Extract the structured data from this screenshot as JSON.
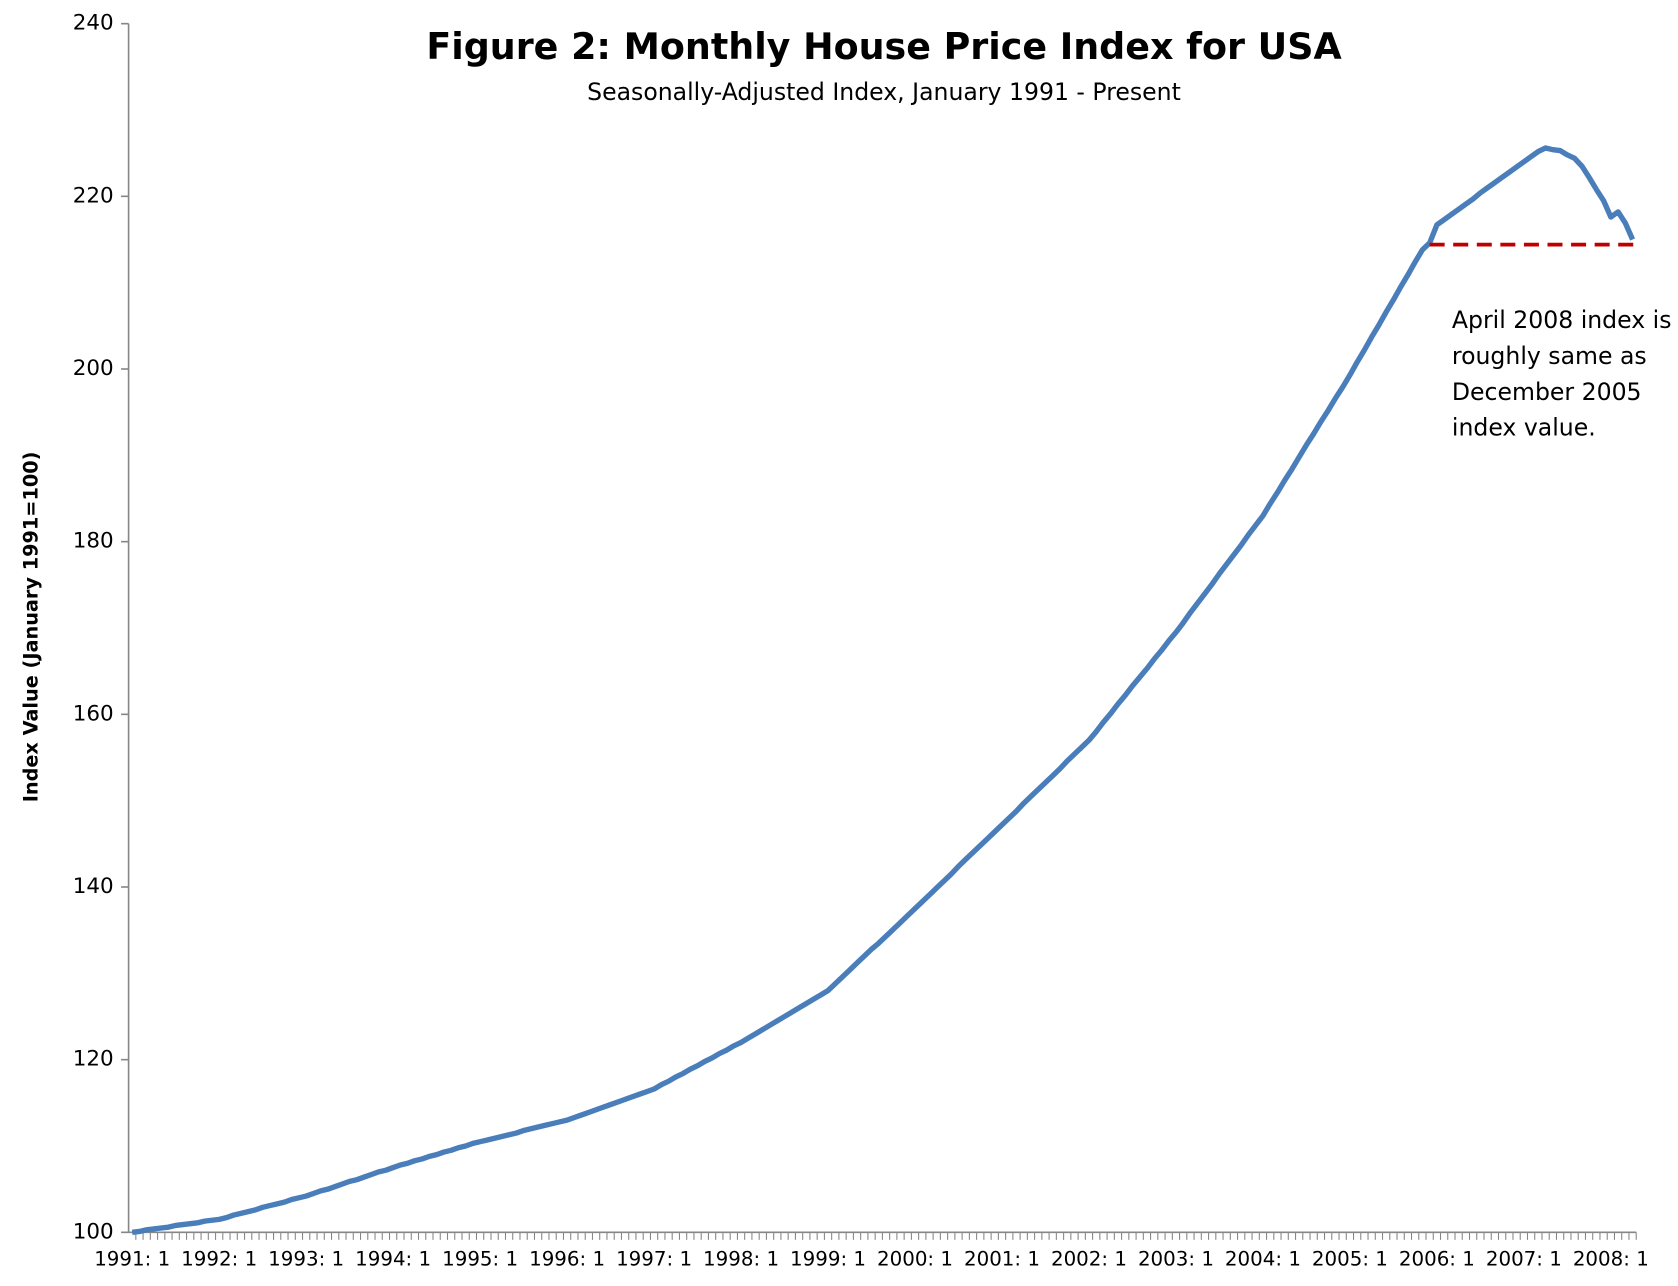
{
  "chart_data": {
    "type": "line",
    "title": "Figure 2: Monthly House Price Index for USA",
    "subtitle": "Seasonally-Adjusted Index, January 1991 - Present",
    "y_label": "Index Value (January 1991=100)",
    "annotation": [
      "April 2008 index is",
      "roughly same as",
      "December 2005",
      "index value."
    ],
    "categories": [
      "1991: 1",
      null,
      null,
      null,
      null,
      null,
      null,
      null,
      null,
      null,
      null,
      null,
      "1992: 1",
      null,
      null,
      null,
      null,
      null,
      null,
      null,
      null,
      null,
      null,
      null,
      "1993: 1",
      null,
      null,
      null,
      null,
      null,
      null,
      null,
      null,
      null,
      null,
      null,
      "1994: 1",
      null,
      null,
      null,
      null,
      null,
      null,
      null,
      null,
      null,
      null,
      null,
      "1995: 1",
      null,
      null,
      null,
      null,
      null,
      null,
      null,
      null,
      null,
      null,
      null,
      "1996: 1",
      null,
      null,
      null,
      null,
      null,
      null,
      null,
      null,
      null,
      null,
      null,
      "1997: 1",
      null,
      null,
      null,
      null,
      null,
      null,
      null,
      null,
      null,
      null,
      null,
      "1998: 1",
      null,
      null,
      null,
      null,
      null,
      null,
      null,
      null,
      null,
      null,
      null,
      "1999: 1",
      null,
      null,
      null,
      null,
      null,
      null,
      null,
      null,
      null,
      null,
      null,
      "2000: 1",
      null,
      null,
      null,
      null,
      null,
      null,
      null,
      null,
      null,
      null,
      null,
      "2001: 1",
      null,
      null,
      null,
      null,
      null,
      null,
      null,
      null,
      null,
      null,
      null,
      "2002: 1",
      null,
      null,
      null,
      null,
      null,
      null,
      null,
      null,
      null,
      null,
      null,
      "2003: 1",
      null,
      null,
      null,
      null,
      null,
      null,
      null,
      null,
      null,
      null,
      null,
      "2004: 1",
      null,
      null,
      null,
      null,
      null,
      null,
      null,
      null,
      null,
      null,
      null,
      "2005: 1",
      null,
      null,
      null,
      null,
      null,
      null,
      null,
      null,
      null,
      null,
      null,
      "2006: 1",
      null,
      null,
      null,
      null,
      null,
      null,
      null,
      null,
      null,
      null,
      null,
      "2007: 1",
      null,
      null,
      null,
      null,
      null,
      null,
      null,
      null,
      null,
      null,
      null,
      "2008: 1",
      null,
      null,
      null
    ],
    "values": [
      100.0,
      100.1,
      100.3,
      100.4,
      100.5,
      100.6,
      100.8,
      100.9,
      101.0,
      101.1,
      101.3,
      101.4,
      101.5,
      101.7,
      102.0,
      102.2,
      102.4,
      102.6,
      102.9,
      103.1,
      103.3,
      103.5,
      103.8,
      104.0,
      104.2,
      104.5,
      104.8,
      105.0,
      105.3,
      105.6,
      105.9,
      106.1,
      106.4,
      106.7,
      107.0,
      107.2,
      107.5,
      107.8,
      108.0,
      108.3,
      108.5,
      108.8,
      109.0,
      109.3,
      109.5,
      109.8,
      110.0,
      110.3,
      110.5,
      110.7,
      110.9,
      111.1,
      111.3,
      111.5,
      111.8,
      112.0,
      112.2,
      112.4,
      112.6,
      112.8,
      113.0,
      113.3,
      113.6,
      113.9,
      114.2,
      114.5,
      114.8,
      115.1,
      115.4,
      115.7,
      116.0,
      116.3,
      116.6,
      117.1,
      117.5,
      118.0,
      118.4,
      118.9,
      119.3,
      119.8,
      120.2,
      120.7,
      121.1,
      121.6,
      122.0,
      122.5,
      123.0,
      123.5,
      124.0,
      124.5,
      125.0,
      125.5,
      126.0,
      126.5,
      127.0,
      127.5,
      128.0,
      128.8,
      129.6,
      130.4,
      131.2,
      132.0,
      132.8,
      133.5,
      134.3,
      135.1,
      135.9,
      136.7,
      137.5,
      138.3,
      139.1,
      139.9,
      140.7,
      141.5,
      142.4,
      143.2,
      144.0,
      144.8,
      145.6,
      146.4,
      147.2,
      148.0,
      148.8,
      149.7,
      150.5,
      151.3,
      152.1,
      152.9,
      153.7,
      154.6,
      155.4,
      156.2,
      157.0,
      158.0,
      159.1,
      160.1,
      161.2,
      162.2,
      163.3,
      164.3,
      165.3,
      166.4,
      167.4,
      168.5,
      169.5,
      170.6,
      171.8,
      172.9,
      174.0,
      175.1,
      176.3,
      177.4,
      178.5,
      179.6,
      180.8,
      181.9,
      183.0,
      184.4,
      185.7,
      187.1,
      188.4,
      189.8,
      191.2,
      192.5,
      193.9,
      195.2,
      196.6,
      197.9,
      199.3,
      200.8,
      202.2,
      203.7,
      205.1,
      206.6,
      208.0,
      209.5,
      210.9,
      212.4,
      213.8,
      214.6,
      216.7,
      217.3,
      217.9,
      218.5,
      219.1,
      219.7,
      220.4,
      221.0,
      221.6,
      222.2,
      222.8,
      223.4,
      224.0,
      224.6,
      225.2,
      225.6,
      225.4,
      225.3,
      224.8,
      224.4,
      223.5,
      222.2,
      220.8,
      219.5,
      217.6,
      218.2,
      216.9,
      215.0
    ],
    "color": "#4a7ebb",
    "reference": {
      "y": 214.4,
      "x_from": 179,
      "x_to": 207,
      "color": "#c00000",
      "dashed": true
    },
    "ylim": [
      100,
      240
    ],
    "yticks": [
      100,
      120,
      140,
      160,
      180,
      200,
      220,
      240
    ],
    "grid": false,
    "legend": false
  }
}
